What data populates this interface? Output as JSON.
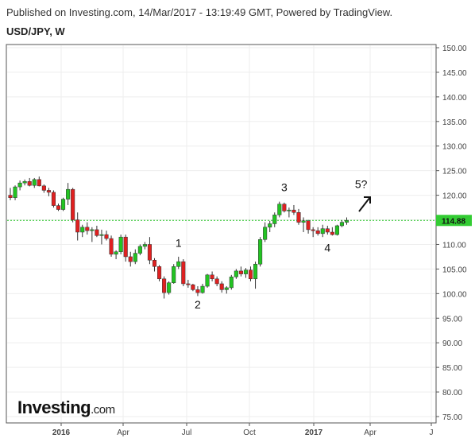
{
  "header": {
    "published_line": "Published on Investing.com, 14/Mar/2017 - 13:19:49 GMT, Powered by TradingView.",
    "symbol": "USD/JPY, W"
  },
  "logo": {
    "brand": "Investing",
    "suffix": ".com"
  },
  "chart_data": {
    "type": "candlestick",
    "yaxis": {
      "ticks": [
        "150.00",
        "145.00",
        "140.00",
        "135.00",
        "130.00",
        "125.00",
        "120.00",
        "115.00",
        "110.00",
        "105.00",
        "100.00",
        "95.00",
        "90.00",
        "85.00",
        "80.00",
        "75.00"
      ],
      "ylim": [
        75,
        150
      ]
    },
    "xaxis": {
      "ticks": [
        "2016",
        "Apr",
        "Jul",
        "Oct",
        "2017",
        "Apr",
        "J"
      ],
      "bold": [
        "2016",
        "2017"
      ]
    },
    "current_price": "114.88",
    "colors": {
      "up": "#22c422",
      "down": "#e02020",
      "price_line": "#22c422",
      "price_label_bg": "#33cc33"
    },
    "candles": [
      [
        120.0,
        121.5,
        119.0,
        119.5
      ],
      [
        119.5,
        122.0,
        119.0,
        121.7
      ],
      [
        121.7,
        123.0,
        121.0,
        122.5
      ],
      [
        122.5,
        123.2,
        122.0,
        122.8
      ],
      [
        122.8,
        123.5,
        121.8,
        122.0
      ],
      [
        122.0,
        123.5,
        121.5,
        123.2
      ],
      [
        123.2,
        123.8,
        121.8,
        121.9
      ],
      [
        121.9,
        122.2,
        120.5,
        121.0
      ],
      [
        121.0,
        121.5,
        119.8,
        120.6
      ],
      [
        120.6,
        121.0,
        117.5,
        117.9
      ],
      [
        117.9,
        118.3,
        116.8,
        117.1
      ],
      [
        117.1,
        119.5,
        116.8,
        119.2
      ],
      [
        119.2,
        122.5,
        118.0,
        121.2
      ],
      [
        121.2,
        121.5,
        114.5,
        115.0
      ],
      [
        115.0,
        116.5,
        110.8,
        112.5
      ],
      [
        112.5,
        114.0,
        111.5,
        113.5
      ],
      [
        113.5,
        114.5,
        112.0,
        112.8
      ],
      [
        112.8,
        113.5,
        110.5,
        113.0
      ],
      [
        113.0,
        113.8,
        111.5,
        111.8
      ],
      [
        111.8,
        113.0,
        110.0,
        112.0
      ],
      [
        112.0,
        112.8,
        110.8,
        111.2
      ],
      [
        111.2,
        111.8,
        107.5,
        108.0
      ],
      [
        108.0,
        108.8,
        107.0,
        108.5
      ],
      [
        108.5,
        112.0,
        108.0,
        111.5
      ],
      [
        111.5,
        112.0,
        106.5,
        107.5
      ],
      [
        107.5,
        108.5,
        105.5,
        106.5
      ],
      [
        106.5,
        109.0,
        106.0,
        108.2
      ],
      [
        108.2,
        110.0,
        107.8,
        109.6
      ],
      [
        109.6,
        110.5,
        109.0,
        110.0
      ],
      [
        110.0,
        111.5,
        106.0,
        106.8
      ],
      [
        106.8,
        107.2,
        104.5,
        105.5
      ],
      [
        105.5,
        105.8,
        102.5,
        103.0
      ],
      [
        103.0,
        103.5,
        99.0,
        100.2
      ],
      [
        100.2,
        102.5,
        99.8,
        102.2
      ],
      [
        102.2,
        106.0,
        102.0,
        105.5
      ],
      [
        105.5,
        107.5,
        105.0,
        106.5
      ],
      [
        106.5,
        107.0,
        101.5,
        102.0
      ],
      [
        102.0,
        102.8,
        101.2,
        101.8
      ],
      [
        101.8,
        102.0,
        100.5,
        100.8
      ],
      [
        100.8,
        101.5,
        99.5,
        100.2
      ],
      [
        100.2,
        102.0,
        100.0,
        101.5
      ],
      [
        101.5,
        104.0,
        101.2,
        103.8
      ],
      [
        103.8,
        104.5,
        102.5,
        103.0
      ],
      [
        103.0,
        103.5,
        101.5,
        102.0
      ],
      [
        102.0,
        102.5,
        100.2,
        100.8
      ],
      [
        100.8,
        101.5,
        100.0,
        101.2
      ],
      [
        101.2,
        103.8,
        100.8,
        103.4
      ],
      [
        103.4,
        105.0,
        103.0,
        104.6
      ],
      [
        104.6,
        105.5,
        103.5,
        104.0
      ],
      [
        104.0,
        105.2,
        103.2,
        104.8
      ],
      [
        104.8,
        105.5,
        102.5,
        103.0
      ],
      [
        103.0,
        106.5,
        101.0,
        106.0
      ],
      [
        106.0,
        111.5,
        105.5,
        111.0
      ],
      [
        111.0,
        114.5,
        110.5,
        113.5
      ],
      [
        113.5,
        114.8,
        112.5,
        114.2
      ],
      [
        114.2,
        116.5,
        113.5,
        116.0
      ],
      [
        116.0,
        118.7,
        115.5,
        118.2
      ],
      [
        118.2,
        118.5,
        116.5,
        116.8
      ],
      [
        116.8,
        117.5,
        115.5,
        117.0
      ],
      [
        117.0,
        118.0,
        116.0,
        116.5
      ],
      [
        116.5,
        117.2,
        114.0,
        114.5
      ],
      [
        114.5,
        115.5,
        112.5,
        114.8
      ],
      [
        114.8,
        115.0,
        112.2,
        113.0
      ],
      [
        113.0,
        113.5,
        111.5,
        112.8
      ],
      [
        112.8,
        113.5,
        111.8,
        112.2
      ],
      [
        112.2,
        114.0,
        111.5,
        113.2
      ],
      [
        113.2,
        113.8,
        112.0,
        112.5
      ],
      [
        112.5,
        113.5,
        111.8,
        112.0
      ],
      [
        112.0,
        114.0,
        111.8,
        113.8
      ],
      [
        113.8,
        114.9,
        113.5,
        114.5
      ],
      [
        114.5,
        115.5,
        114.0,
        114.88
      ]
    ],
    "annotations": [
      {
        "label": "1",
        "x_index": 35,
        "y": 109.5
      },
      {
        "label": "2",
        "x_index": 39,
        "y": 97.0
      },
      {
        "label": "3",
        "x_index": 57,
        "y": 120.8
      },
      {
        "label": "4",
        "x_index": 66,
        "y": 108.5
      },
      {
        "label": "5?",
        "x_index": 73,
        "y": 121.5
      }
    ]
  }
}
